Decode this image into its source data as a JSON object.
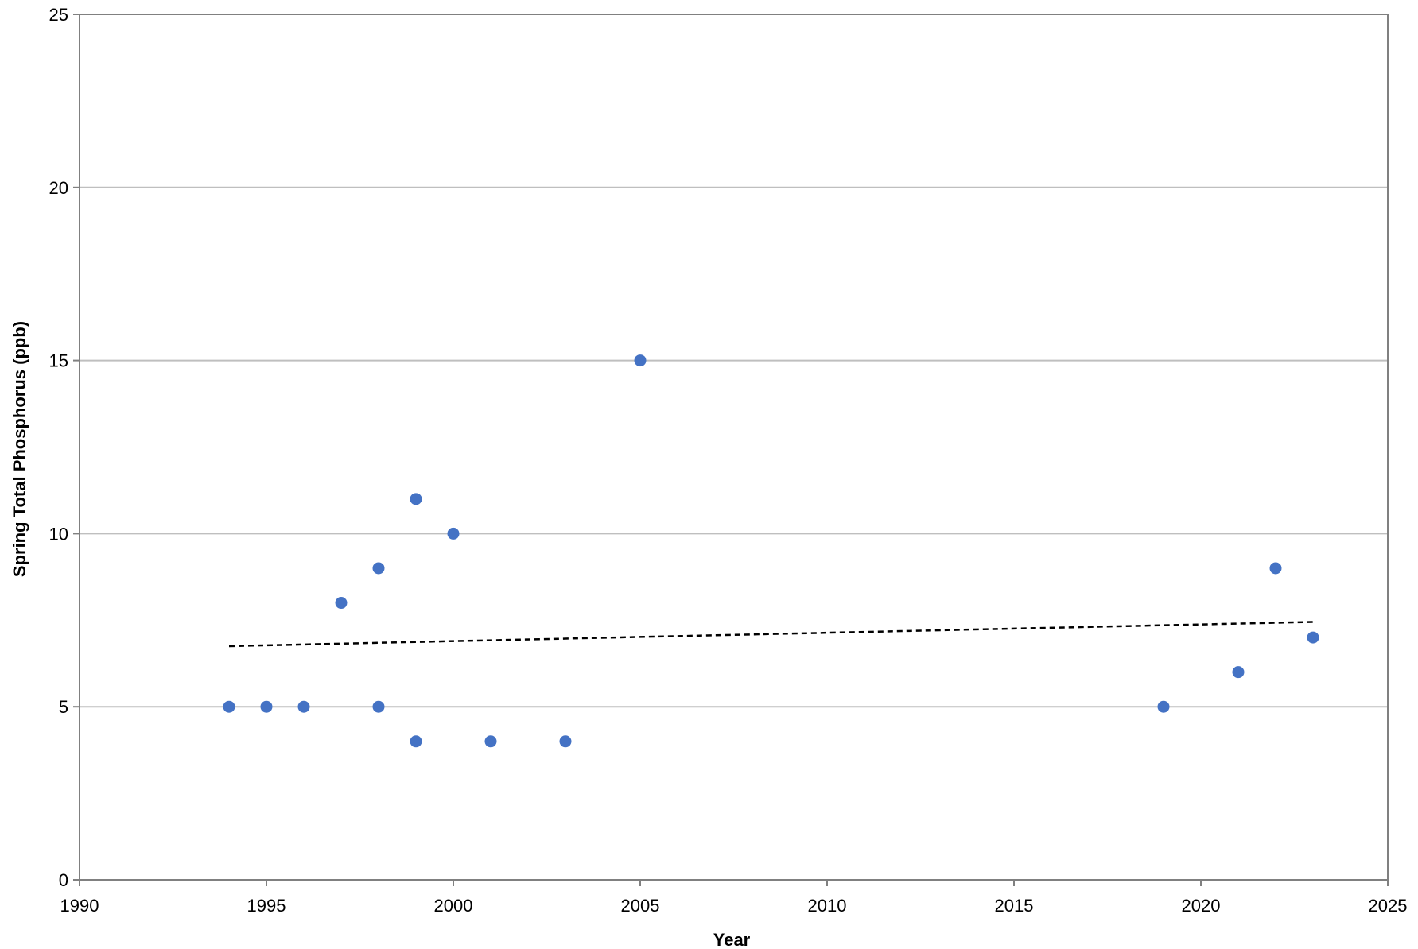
{
  "chart_data": {
    "type": "scatter",
    "title": "",
    "xlabel": "Year",
    "ylabel": "Spring Total Phosphorus (ppb)",
    "xlim": [
      1990,
      2025
    ],
    "ylim": [
      0,
      25
    ],
    "xticks": [
      1990,
      1995,
      2000,
      2005,
      2010,
      2015,
      2020,
      2025
    ],
    "yticks": [
      0,
      5,
      10,
      15,
      20,
      25
    ],
    "grid": {
      "horizontal": true,
      "vertical": false
    },
    "legend": "none",
    "colors": {
      "points": "#4472C4",
      "grid": "#BFBFBF",
      "axes": "#808080",
      "trendline": "#000000"
    },
    "series": [
      {
        "points": [
          [
            1994,
            5
          ],
          [
            1995,
            5
          ],
          [
            1996,
            5
          ],
          [
            1997,
            8
          ],
          [
            1998,
            9
          ],
          [
            1998,
            5
          ],
          [
            1999,
            11
          ],
          [
            1999,
            4
          ],
          [
            2000,
            10
          ],
          [
            2001,
            4
          ],
          [
            2003,
            4
          ],
          [
            2005,
            15
          ],
          [
            2019,
            5
          ],
          [
            2021,
            6
          ],
          [
            2022,
            9
          ],
          [
            2023,
            7
          ]
        ]
      }
    ],
    "trendline": {
      "style": "dashed",
      "type": "linear",
      "x": [
        1994,
        2023
      ],
      "y": [
        6.75,
        7.45
      ]
    }
  }
}
